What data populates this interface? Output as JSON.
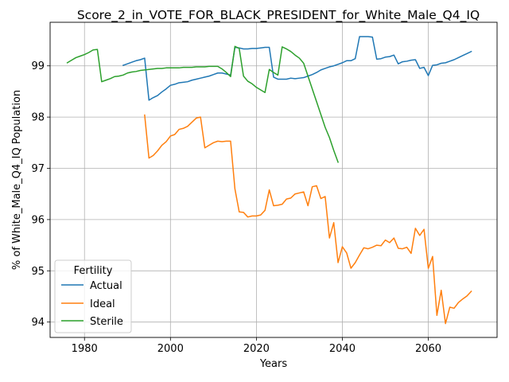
{
  "chart_data": {
    "type": "line",
    "title": "Score_2_in_VOTE_FOR_BLACK_PRESIDENT_for_White_Male_Q4_IQ",
    "xlabel": "Years",
    "ylabel": "% of White_Male_Q4_IQ Population",
    "xlim": [
      1972,
      2076
    ],
    "ylim": [
      93.7,
      99.85
    ],
    "xticks": [
      1980,
      2000,
      2020,
      2040,
      2060
    ],
    "yticks": [
      94,
      95,
      96,
      97,
      98,
      99
    ],
    "grid": true,
    "legend": {
      "title": "Fertility",
      "position": "lower-left"
    },
    "series": [
      {
        "name": "Actual",
        "color": "#1f77b4",
        "x": [
          1989,
          1990,
          1991,
          1992,
          1993,
          1994,
          1995,
          1996,
          1997,
          1998,
          1999,
          2000,
          2001,
          2002,
          2003,
          2004,
          2005,
          2006,
          2007,
          2008,
          2009,
          2010,
          2011,
          2012,
          2013,
          2014,
          2015,
          2016,
          2017,
          2018,
          2019,
          2020,
          2021,
          2022,
          2023,
          2024,
          2025,
          2026,
          2027,
          2028,
          2029,
          2030,
          2031,
          2032,
          2033,
          2034,
          2035,
          2036,
          2037,
          2038,
          2039,
          2040,
          2041,
          2042,
          2043,
          2044,
          2045,
          2046,
          2047,
          2048,
          2049,
          2050,
          2051,
          2052,
          2053,
          2054,
          2055,
          2056,
          2057,
          2058,
          2059,
          2060,
          2061,
          2062,
          2063,
          2064,
          2065,
          2066,
          2067,
          2068,
          2069,
          2070
        ],
        "values": [
          99.01,
          99.04,
          99.07,
          99.1,
          99.12,
          99.15,
          98.33,
          98.38,
          98.42,
          98.49,
          98.55,
          98.62,
          98.64,
          98.67,
          98.68,
          98.69,
          98.72,
          98.74,
          98.76,
          98.78,
          98.8,
          98.83,
          98.86,
          98.86,
          98.84,
          98.82,
          99.36,
          99.35,
          99.33,
          99.33,
          99.34,
          99.34,
          99.35,
          99.36,
          99.36,
          98.78,
          98.74,
          98.74,
          98.74,
          98.76,
          98.75,
          98.76,
          98.77,
          98.8,
          98.83,
          98.87,
          98.92,
          98.95,
          98.98,
          99.0,
          99.03,
          99.06,
          99.1,
          99.1,
          99.14,
          99.57,
          99.57,
          99.57,
          99.56,
          99.13,
          99.14,
          99.17,
          99.18,
          99.21,
          99.04,
          99.08,
          99.09,
          99.11,
          99.12,
          98.95,
          98.97,
          98.81,
          99.01,
          99.02,
          99.05,
          99.06,
          99.09,
          99.12,
          99.16,
          99.2,
          99.24,
          99.28
        ]
      },
      {
        "name": "Ideal",
        "color": "#ff7f0e",
        "x": [
          1994,
          1995,
          1996,
          1997,
          1998,
          1999,
          2000,
          2001,
          2002,
          2003,
          2004,
          2005,
          2006,
          2007,
          2008,
          2009,
          2010,
          2011,
          2012,
          2013,
          2014,
          2015,
          2016,
          2017,
          2018,
          2019,
          2020,
          2021,
          2022,
          2023,
          2024,
          2025,
          2026,
          2027,
          2028,
          2029,
          2030,
          2031,
          2032,
          2033,
          2034,
          2035,
          2036,
          2037,
          2038,
          2039,
          2040,
          2041,
          2042,
          2043,
          2044,
          2045,
          2046,
          2047,
          2048,
          2049,
          2050,
          2051,
          2052,
          2053,
          2054,
          2055,
          2056,
          2057,
          2058,
          2059,
          2060,
          2061,
          2062,
          2063,
          2064,
          2065,
          2066,
          2067,
          2068,
          2069,
          2070
        ],
        "values": [
          98.04,
          97.2,
          97.25,
          97.34,
          97.45,
          97.52,
          97.63,
          97.66,
          97.76,
          97.78,
          97.82,
          97.9,
          97.98,
          98.0,
          97.4,
          97.45,
          97.5,
          97.53,
          97.52,
          97.53,
          97.53,
          96.6,
          96.15,
          96.14,
          96.05,
          96.07,
          96.07,
          96.09,
          96.18,
          96.58,
          96.27,
          96.28,
          96.3,
          96.4,
          96.42,
          96.5,
          96.52,
          96.54,
          96.27,
          96.64,
          96.66,
          96.41,
          96.45,
          95.64,
          95.94,
          95.16,
          95.47,
          95.35,
          95.05,
          95.16,
          95.31,
          95.45,
          95.43,
          95.46,
          95.5,
          95.49,
          95.6,
          95.55,
          95.64,
          95.44,
          95.43,
          95.46,
          95.34,
          95.83,
          95.69,
          95.81,
          95.05,
          95.28,
          94.13,
          94.62,
          93.97,
          94.29,
          94.27,
          94.38,
          94.45,
          94.51,
          94.6
        ]
      },
      {
        "name": "Sterile",
        "color": "#2ca02c",
        "x": [
          1976,
          1977,
          1978,
          1979,
          1980,
          1981,
          1982,
          1983,
          1984,
          1985,
          1986,
          1987,
          1988,
          1989,
          1990,
          1991,
          1992,
          1993,
          1994,
          1995,
          1996,
          1997,
          1998,
          1999,
          2000,
          2001,
          2002,
          2003,
          2004,
          2005,
          2006,
          2007,
          2008,
          2009,
          2010,
          2011,
          2012,
          2013,
          2014,
          2015,
          2016,
          2017,
          2018,
          2019,
          2020,
          2021,
          2022,
          2023,
          2024,
          2025,
          2026,
          2027,
          2028,
          2029,
          2030,
          2031,
          2032,
          2033,
          2034,
          2035,
          2036,
          2037,
          2038,
          2039
        ],
        "values": [
          99.06,
          99.11,
          99.16,
          99.19,
          99.22,
          99.26,
          99.31,
          99.32,
          98.69,
          98.72,
          98.75,
          98.79,
          98.8,
          98.82,
          98.86,
          98.88,
          98.89,
          98.91,
          98.92,
          98.93,
          98.94,
          98.95,
          98.95,
          98.96,
          98.96,
          98.96,
          98.96,
          98.97,
          98.97,
          98.97,
          98.98,
          98.98,
          98.98,
          98.99,
          98.99,
          98.99,
          98.94,
          98.87,
          98.79,
          99.38,
          99.34,
          98.8,
          98.7,
          98.65,
          98.58,
          98.53,
          98.48,
          98.93,
          98.87,
          98.82,
          99.37,
          99.33,
          99.28,
          99.21,
          99.15,
          99.05,
          98.8,
          98.55,
          98.3,
          98.05,
          97.8,
          97.6,
          97.35,
          97.12
        ]
      }
    ]
  }
}
